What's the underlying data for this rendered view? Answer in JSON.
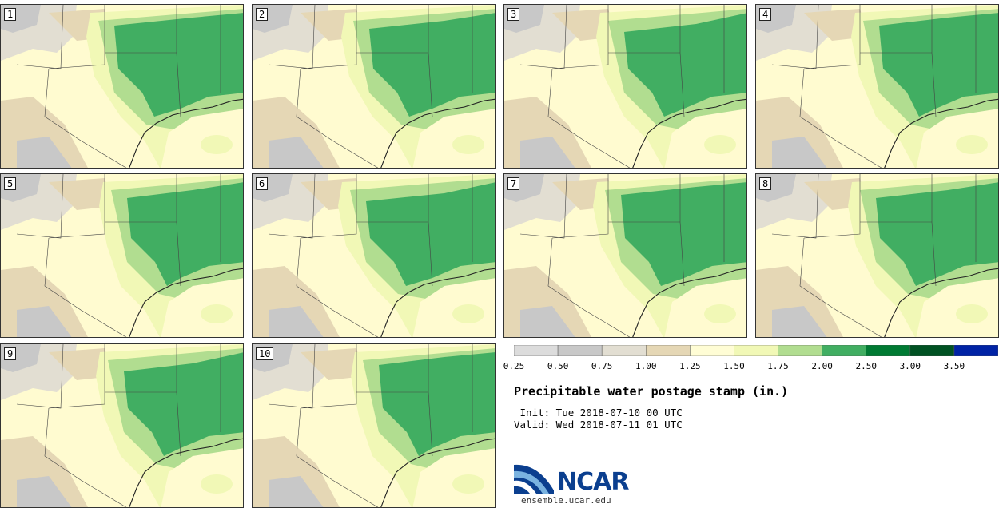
{
  "panels": [
    {
      "label": "1"
    },
    {
      "label": "2"
    },
    {
      "label": "3"
    },
    {
      "label": "4"
    },
    {
      "label": "5"
    },
    {
      "label": "6"
    },
    {
      "label": "7"
    },
    {
      "label": "8"
    },
    {
      "label": "9"
    },
    {
      "label": "10"
    }
  ],
  "colorbar": {
    "colors": [
      "#dcdcdc",
      "#c8c8c8",
      "#e2ded2",
      "#e5d7b5",
      "#fffdd5",
      "#f1f8b6",
      "#b1dd90",
      "#41ae62",
      "#007a33",
      "#005223",
      "#0023a5"
    ],
    "ticks": [
      "0.25",
      "0.50",
      "0.75",
      "1.00",
      "1.25",
      "1.50",
      "1.75",
      "2.00",
      "2.50",
      "3.00",
      "3.50"
    ]
  },
  "title": "Precipitable water postage stamp (in.)",
  "init": " Init: Tue 2018-07-10 00 UTC",
  "valid": "Valid: Wed 2018-07-11 01 UTC",
  "logo": {
    "text": "NCAR",
    "url": "ensemble.ucar.edu"
  },
  "colors": {
    "water_bg": "#fffbd0",
    "green": "#41ae62",
    "light_green": "#b1dd90",
    "tan": "#e5d7b5",
    "gray": "#c8c8c8"
  }
}
